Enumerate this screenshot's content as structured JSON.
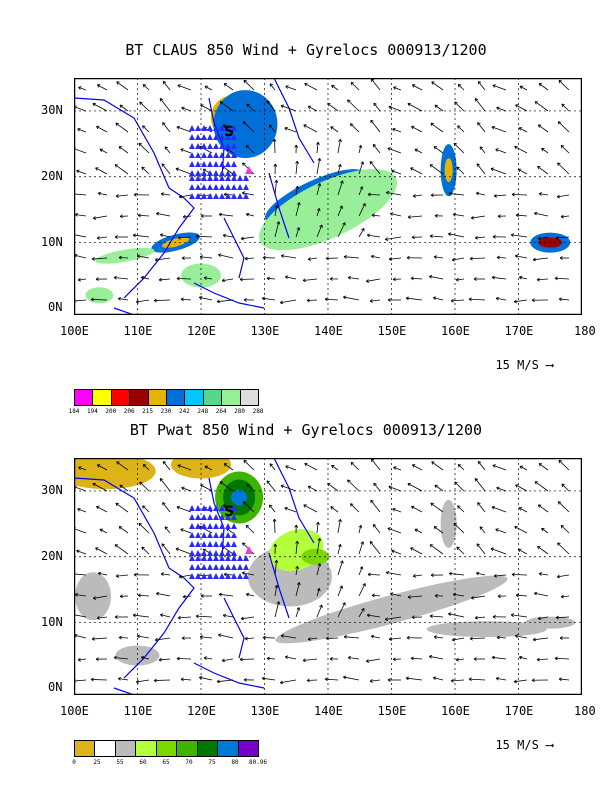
{
  "panels": [
    {
      "title": "BT CLAUS 850 Wind + Gyrelocs 000913/1200",
      "x_ticks": [
        "100E",
        "110E",
        "120E",
        "130E",
        "140E",
        "150E",
        "160E",
        "170E",
        "180"
      ],
      "y_ticks": [
        "30N",
        "20N",
        "10N",
        "0N"
      ],
      "ref_vector": "15 M/S",
      "colorbar": {
        "colors": [
          "#ff00ff",
          "#ffff00",
          "#ff0000",
          "#9b0000",
          "#e6b400",
          "#0070d8",
          "#00c8ff",
          "#55d88a",
          "#99ee99",
          "#dddddd"
        ],
        "labels": [
          "184",
          "194",
          "200",
          "206",
          "215",
          "230",
          "242",
          "248",
          "264",
          "280",
          "288"
        ]
      }
    },
    {
      "title": "BT Pwat 850 Wind + Gyrelocs 000913/1200",
      "x_ticks": [
        "100E",
        "110E",
        "120E",
        "130E",
        "140E",
        "150E",
        "160E",
        "170E",
        "180"
      ],
      "y_ticks": [
        "30N",
        "20N",
        "10N",
        "0N"
      ],
      "ref_vector": "15 M/S",
      "colorbar": {
        "colors": [
          "#dcb418",
          "#ffffff",
          "#bbbbbb",
          "#b4ff3c",
          "#7ad800",
          "#3cb400",
          "#007800",
          "#0078d8",
          "#7800c8"
        ],
        "labels": [
          "0",
          "25",
          "55",
          "60",
          "65",
          "70",
          "75",
          "80",
          "80.96"
        ]
      }
    }
  ],
  "legend_colors": {
    "gyre_marker": "#2828ff",
    "center_marker": "#ff33cc",
    "coast": "#0000ff"
  }
}
